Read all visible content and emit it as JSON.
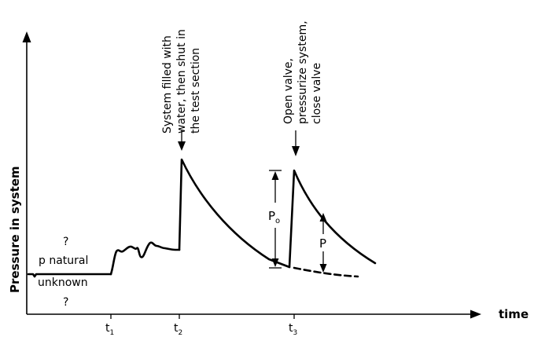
{
  "axes": {
    "y_label": "Pressure in system",
    "x_label": "time"
  },
  "time_ticks": [
    {
      "main": "t",
      "sub": "1"
    },
    {
      "main": "t",
      "sub": "2"
    },
    {
      "main": "t",
      "sub": "3"
    }
  ],
  "labels": {
    "question_top": "?",
    "p_natural": "p natural",
    "unknown": "unknown",
    "question_bottom": "?",
    "annotation_fill": [
      "System filled with",
      "water, then shut in",
      "the test section"
    ],
    "annotation_valve": [
      "Open valve,",
      "pressurize system,",
      "close valve"
    ],
    "p0_main": "P",
    "p0_sub": "o",
    "p_label": "P"
  }
}
